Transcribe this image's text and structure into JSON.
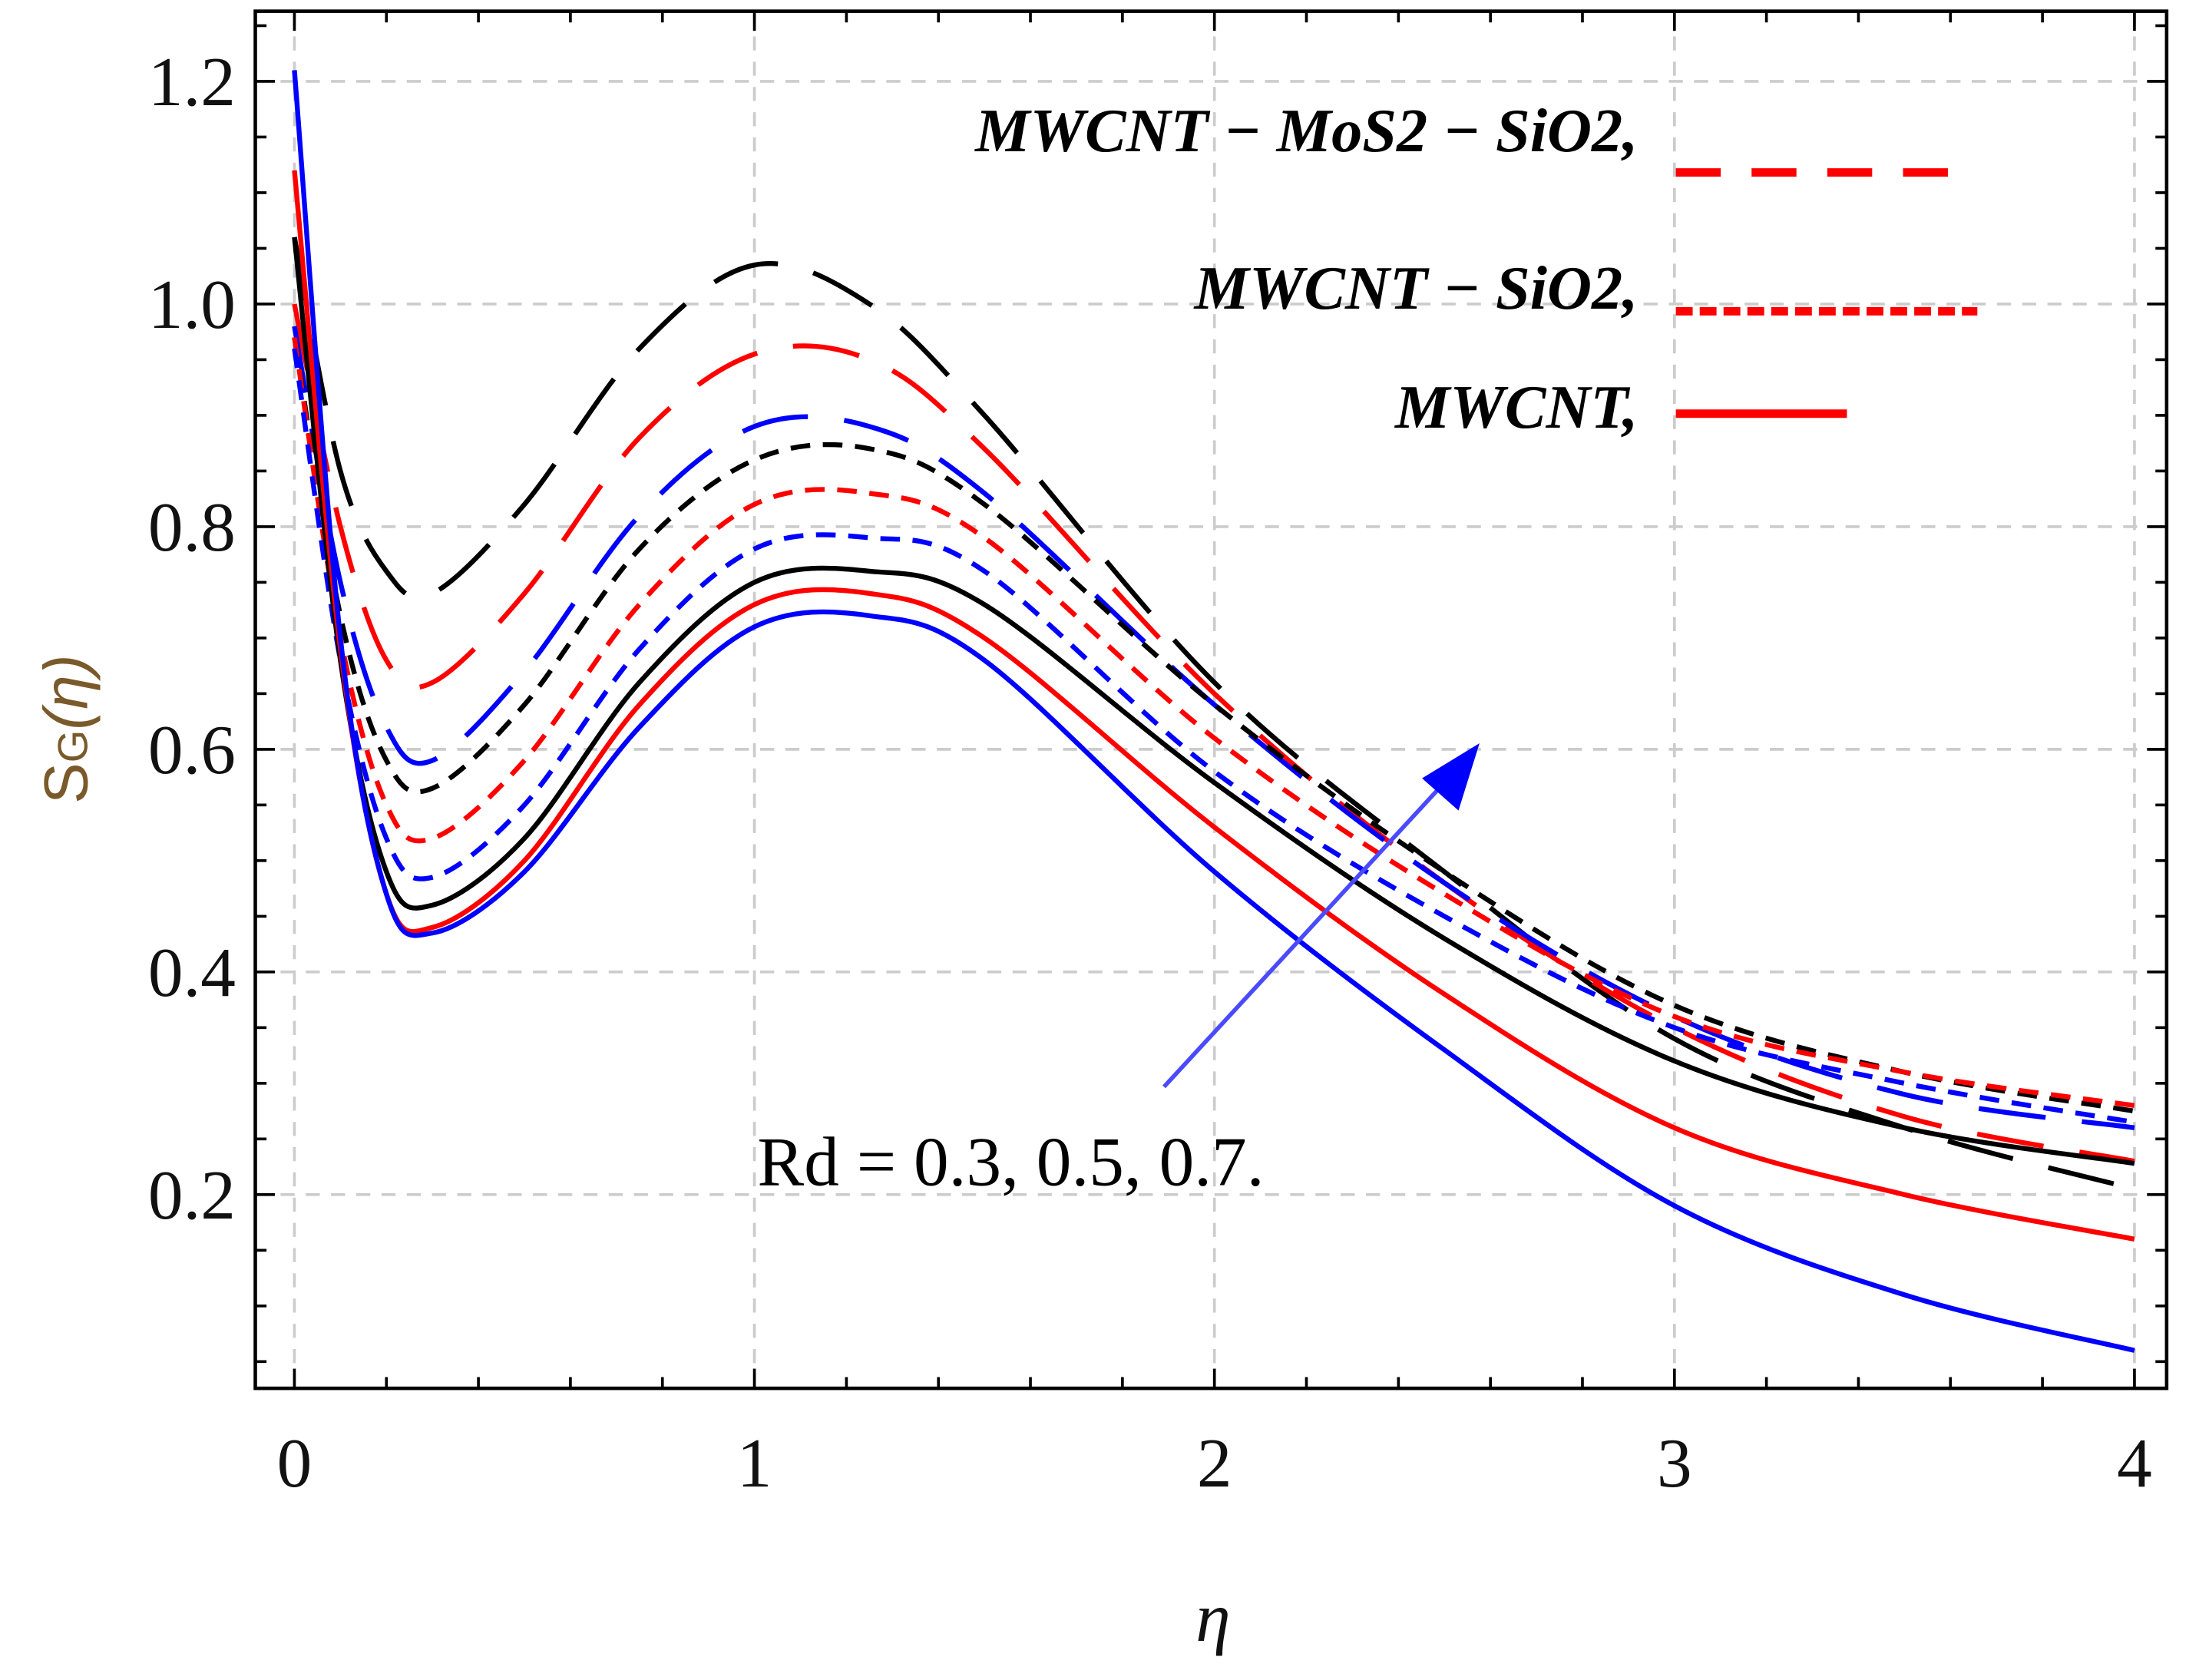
{
  "chart_data": {
    "type": "line",
    "title": "",
    "xlabel": "η",
    "ylabel_main": "S",
    "ylabel_sub": "G",
    "ylabel_arg": "(η)",
    "xlim": [
      -0.085,
      4.07
    ],
    "ylim": [
      0.026,
      1.263
    ],
    "grid": true,
    "x_ticks": [
      "0",
      "1",
      "2",
      "3",
      "4"
    ],
    "y_ticks": [
      "0.2",
      "0.4",
      "0.6",
      "0.8",
      "1.0",
      "1.2"
    ],
    "x": [
      0,
      0.1,
      0.2,
      0.3,
      0.5,
      0.75,
      1.0,
      1.25,
      1.5,
      2.0,
      2.5,
      3.0,
      3.5,
      4.0
    ],
    "series": [
      {
        "name": "MWCNT-MoS2-SiO2, Rd=0.7",
        "style": "longdash",
        "color": "#000000",
        "values": [
          1.06,
          0.85,
          0.76,
          0.74,
          0.82,
          0.96,
          1.035,
          1.0,
          0.9,
          0.66,
          0.49,
          0.34,
          0.26,
          0.205
        ]
      },
      {
        "name": "MWCNT-MoS2-SiO2, Rd=0.5",
        "style": "longdash",
        "color": "#ff0000",
        "values": [
          1.0,
          0.8,
          0.68,
          0.66,
          0.74,
          0.88,
          0.955,
          0.95,
          0.87,
          0.65,
          0.48,
          0.35,
          0.27,
          0.23
        ]
      },
      {
        "name": "MWCNT-MoS2-SiO2, Rd=0.3",
        "style": "longdash",
        "color": "#0000ff",
        "values": [
          0.98,
          0.75,
          0.62,
          0.59,
          0.67,
          0.81,
          0.89,
          0.89,
          0.83,
          0.64,
          0.48,
          0.36,
          0.29,
          0.26
        ]
      },
      {
        "name": "MWCNT-SiO2, Rd=0.7",
        "style": "shortdash",
        "color": "#000000",
        "values": [
          0.97,
          0.72,
          0.59,
          0.565,
          0.64,
          0.78,
          0.86,
          0.87,
          0.82,
          0.64,
          0.49,
          0.37,
          0.31,
          0.275
        ]
      },
      {
        "name": "MWCNT-SiO2, Rd=0.5",
        "style": "shortdash",
        "color": "#ff0000",
        "values": [
          0.97,
          0.7,
          0.55,
          0.52,
          0.59,
          0.73,
          0.82,
          0.83,
          0.79,
          0.61,
          0.47,
          0.36,
          0.31,
          0.28
        ]
      },
      {
        "name": "MWCNT-SiO2, Rd=0.3",
        "style": "shortdash",
        "color": "#0000ff",
        "values": [
          0.96,
          0.68,
          0.52,
          0.485,
          0.55,
          0.69,
          0.78,
          0.79,
          0.76,
          0.58,
          0.45,
          0.35,
          0.3,
          0.265
        ]
      },
      {
        "name": "MWCNT, Rd=0.7",
        "style": "solid",
        "color": "#000000",
        "values": [
          1.06,
          0.68,
          0.49,
          0.46,
          0.52,
          0.66,
          0.75,
          0.76,
          0.73,
          0.57,
          0.43,
          0.32,
          0.26,
          0.228
        ]
      },
      {
        "name": "MWCNT, Rd=0.5",
        "style": "solid",
        "color": "#ff0000",
        "values": [
          1.12,
          0.69,
          0.47,
          0.44,
          0.5,
          0.64,
          0.73,
          0.74,
          0.7,
          0.53,
          0.38,
          0.26,
          0.2,
          0.16
        ]
      },
      {
        "name": "MWCNT, Rd=0.3",
        "style": "solid",
        "color": "#0000ff",
        "values": [
          1.21,
          0.7,
          0.47,
          0.435,
          0.49,
          0.62,
          0.71,
          0.72,
          0.68,
          0.49,
          0.33,
          0.19,
          0.11,
          0.06
        ]
      }
    ],
    "legend": {
      "placement": "top-right",
      "entries": [
        {
          "label": "MWCNT − MoS2 − SiO2,",
          "style": "longdash",
          "color": "#ff0000"
        },
        {
          "label": "MWCNT − SiO2,",
          "style": "shortdash",
          "color": "#ff0000"
        },
        {
          "label": "MWCNT,",
          "style": "solid",
          "color": "#ff0000"
        }
      ]
    },
    "annotation": {
      "text": "Rd = 0.3, 0.5, 0.7.",
      "arrow_color": "#0000ff"
    }
  }
}
